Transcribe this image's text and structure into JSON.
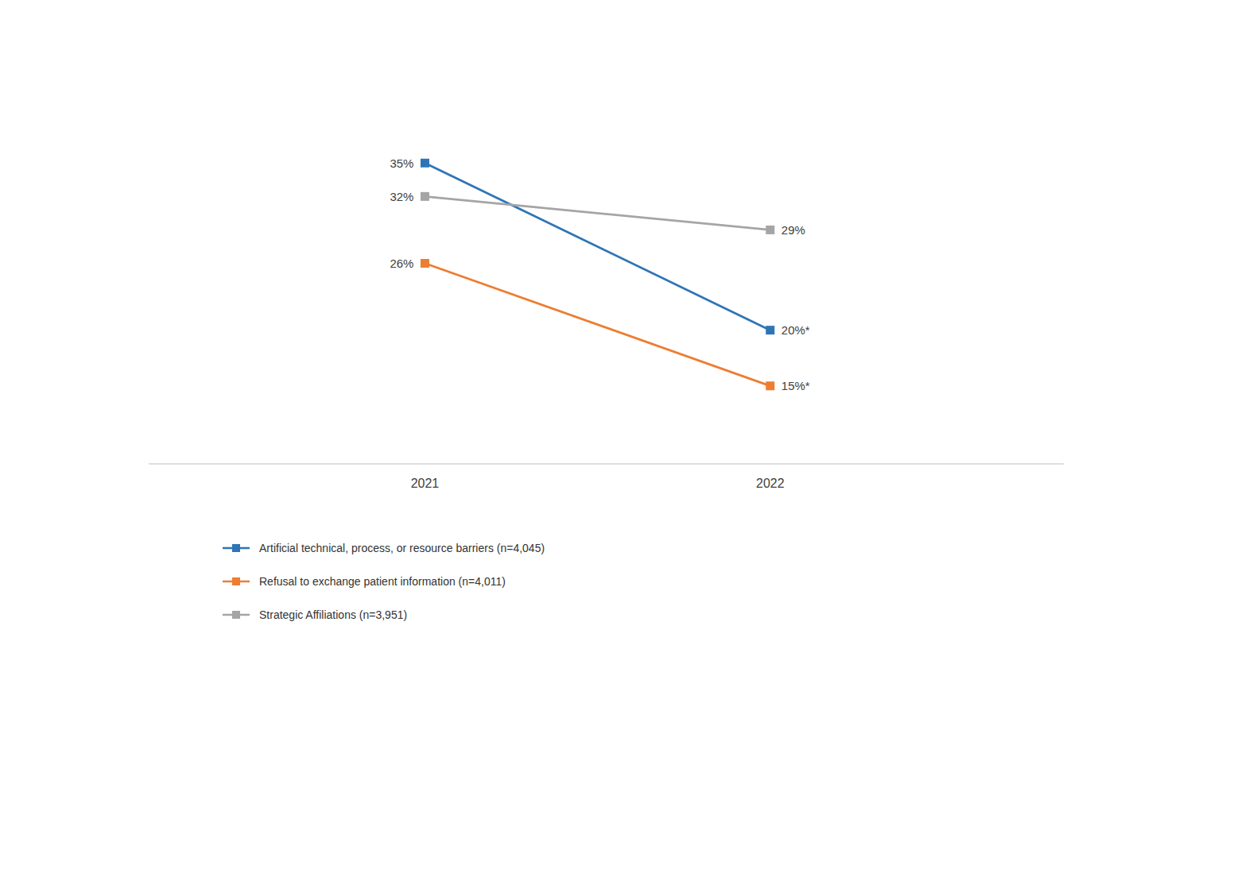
{
  "chart_data": {
    "type": "line",
    "x": [
      2021,
      2022
    ],
    "series": [
      {
        "name": "Artificial technical, process, or resource barriers (n=4,045)",
        "color": "#2E75B6",
        "values": [
          35,
          20
        ],
        "value_labels": [
          "35%",
          "20%*"
        ]
      },
      {
        "name": "Refusal to exchange patient information (n=4,011)",
        "color": "#ED7D31",
        "values": [
          26,
          15
        ],
        "value_labels": [
          "26%",
          "15%*"
        ]
      },
      {
        "name": "Strategic Affiliations (n=3,951)",
        "color": "#A5A5A5",
        "values": [
          32,
          29
        ],
        "value_labels": [
          "32%",
          "29%"
        ]
      }
    ],
    "xlim": [
      2020.2,
      2022.85
    ],
    "ylim": [
      8,
      44
    ],
    "xticks": [
      2021,
      2022
    ],
    "marker": "square",
    "data_labels": true,
    "tick_labels": "x",
    "grid": false,
    "legend": "bottom"
  }
}
